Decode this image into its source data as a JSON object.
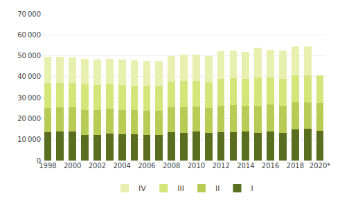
{
  "chart_data": {
    "type": "bar",
    "stacked": true,
    "categories": [
      "1998",
      null,
      "2000",
      null,
      "2002",
      null,
      "2004",
      null,
      "2006",
      null,
      "2008",
      null,
      "2010",
      null,
      "2012",
      null,
      "2014",
      null,
      "2016",
      null,
      "2018",
      null,
      "2020*"
    ],
    "series": [
      {
        "name": "I",
        "color": "#5a6e1f",
        "values": [
          13400,
          13800,
          14000,
          12200,
          12100,
          13000,
          12400,
          12500,
          12300,
          12200,
          13600,
          13300,
          13800,
          13100,
          13500,
          13700,
          13800,
          13200,
          14000,
          13100,
          14900,
          15100,
          14200
        ]
      },
      {
        "name": "II",
        "color": "#b8cc55",
        "values": [
          11700,
          11600,
          11400,
          11900,
          12000,
          11700,
          11800,
          11600,
          11500,
          11700,
          11900,
          12200,
          12000,
          12000,
          12500,
          12800,
          12300,
          13000,
          12700,
          12900,
          12700,
          12600,
          13200
        ]
      },
      {
        "name": "III",
        "color": "#d4e57a",
        "values": [
          11800,
          11700,
          11700,
          12100,
          11900,
          11800,
          11800,
          11700,
          11700,
          11700,
          12000,
          12400,
          12200,
          12200,
          13000,
          12700,
          12800,
          13300,
          12900,
          13000,
          12900,
          12900,
          13300
        ]
      },
      {
        "name": "IV",
        "color": "#e8f0b0",
        "values": [
          12500,
          12300,
          12100,
          12300,
          12200,
          12100,
          12300,
          12000,
          12200,
          11900,
          12200,
          12700,
          12600,
          12500,
          13200,
          13200,
          13000,
          14200,
          13200,
          13400,
          14000,
          13900,
          0
        ]
      }
    ],
    "ylim": [
      0,
      70000
    ],
    "yticks": [
      0,
      {
        "value": 10000,
        "label": "10 000"
      },
      {
        "value": 20000,
        "label": "20 000"
      },
      {
        "value": 30000,
        "label": "30 000"
      },
      {
        "value": 40000,
        "label": "40 000"
      },
      {
        "value": 50000,
        "label": "50 000"
      },
      {
        "value": 60000,
        "label": "60 000"
      },
      {
        "value": 70000,
        "label": "70 000"
      }
    ],
    "grid": true,
    "legend": "bottom"
  }
}
